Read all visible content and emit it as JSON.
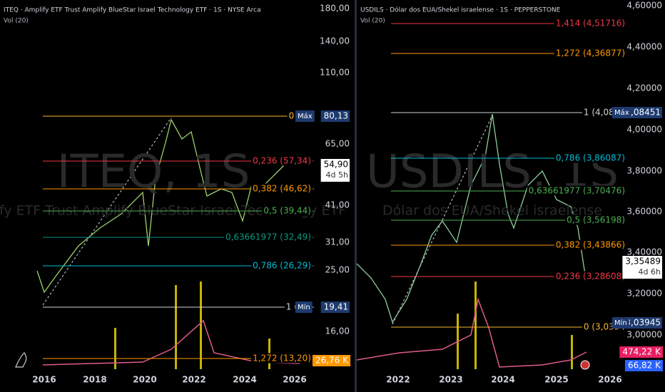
{
  "panels": [
    {
      "title": "ITEQ · Amplify ETF Trust Amplify BlueStar Israel Technology ETF · 1S · NYSE Arca",
      "indicator": "Vol (20)",
      "watermark": {
        "symbol": "ITEQ, 1S",
        "name": "Amplify ETF Trust Amplify BlueStar Israel Technology ETF"
      },
      "price_axis": [
        "180,00",
        "140,00",
        "110,00",
        "65,00",
        "41,00",
        "31,00",
        "25,00",
        "16,00"
      ],
      "fib_levels": [
        {
          "label": "0 (80",
          "color": "#f5b731"
        },
        {
          "label": "0,236 (57,34)",
          "color": "#f23645"
        },
        {
          "label": "0,382 (46,62)",
          "color": "#ff9800"
        },
        {
          "label": "0,5 (39,44)",
          "color": "#4caf50"
        },
        {
          "label": "0,63661977 (32,49)",
          "color": "#089981"
        },
        {
          "label": "0,786 (26,29)",
          "color": "#00bcd4"
        },
        {
          "label": "1 (19,",
          "color": "#d1d4dc"
        },
        {
          "label": "1,272 (13,20)",
          "color": "#ff9800"
        }
      ],
      "badges": [
        {
          "text": "80,13",
          "tag": "Máx"
        },
        {
          "text": "54,90",
          "sub": "4d 5h"
        },
        {
          "text": "19,41",
          "tag": "Mín"
        },
        {
          "text": "26,76 K"
        }
      ],
      "time_axis": [
        "2016",
        "2018",
        "2020",
        "2022",
        "2024",
        "2026"
      ]
    },
    {
      "title": "USDILS · Dólar dos EUA/Shekel israelense · 1S · PEPPERSTONE",
      "indicator": "Vol (20)",
      "watermark": {
        "symbol": "USDILS, 1S",
        "name": "Dólar dos EUA/Shekel israelense"
      },
      "price_axis": [
        "4,60000",
        "4,40000",
        "4,20000",
        "4,00000",
        "3,80000",
        "3,60000",
        "3,40000",
        "3,20000",
        "3,00000"
      ],
      "fib_levels": [
        {
          "label": "1,414 (4,51716)",
          "color": "#f23645"
        },
        {
          "label": "1,272 (4,36877)",
          "color": "#ff9800"
        },
        {
          "label": "1 (4,0845",
          "color": "#d1d4dc"
        },
        {
          "label": "0,786 (3,86087)",
          "color": "#00bcd4"
        },
        {
          "label": "0,63661977 (3,70476)",
          "color": "#4caf50"
        },
        {
          "label": "0,5 (3,56198)",
          "color": "#4caf50"
        },
        {
          "label": "0,382 (3,43866)",
          "color": "#ff9800"
        },
        {
          "label": "0,236 (3,28608)",
          "color": "#f23645"
        },
        {
          "label": "0 (3,0394",
          "color": "#f5b731"
        }
      ],
      "badges": [
        {
          "text": "4,08451",
          "tag": "Máx"
        },
        {
          "text": "3,35489",
          "sub": "4d 6h"
        },
        {
          "text": "3,03945",
          "tag": "Mín"
        },
        {
          "text": "474,22 K"
        },
        {
          "text": "66,82 K"
        }
      ],
      "time_axis": [
        "2022",
        "2023",
        "2024",
        "2025",
        "2026"
      ]
    }
  ]
}
